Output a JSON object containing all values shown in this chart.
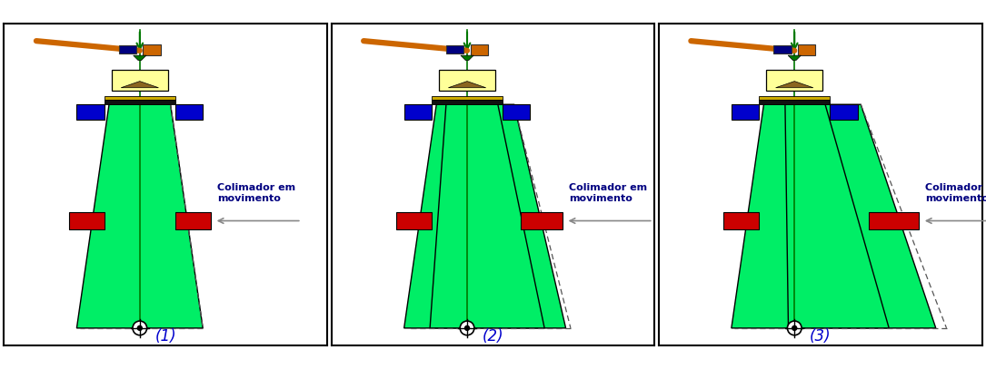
{
  "bg_color": "#ffffff",
  "border_color": "#000000",
  "green_beam": "#00ee66",
  "green_line": "#007700",
  "yellow_color": "#ffff99",
  "blue_color": "#0000cc",
  "red_color": "#cc0000",
  "gold_color": "#ccaa00",
  "black_band": "#111111",
  "orange_color": "#cc6600",
  "navy_color": "#000080",
  "arrow_color": "#888888",
  "text_color": "#000080",
  "label_color": "#0000cc",
  "brown_color": "#8B6520",
  "text": "Colimador em\nmovimento",
  "labels": [
    "(1)",
    "(2)",
    "(3)"
  ],
  "text_fontsize": 8.0,
  "label_fontsize": 12,
  "beam_offsets": [
    0.0,
    0.1,
    0.22
  ]
}
